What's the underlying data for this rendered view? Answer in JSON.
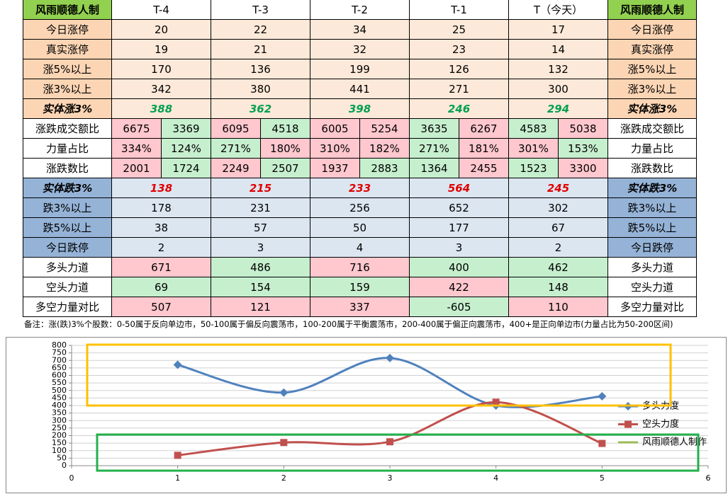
{
  "table": {
    "header": [
      "风雨顺德人制",
      "T-4",
      "T-3",
      "T-2",
      "T-1",
      "T（今天）"
    ],
    "header_color": "#92d050",
    "rows": [
      {
        "label": "今日涨停",
        "label_color": "#fcd5b4",
        "color": "#fde9d9",
        "values": [
          20,
          22,
          34,
          25,
          17
        ]
      },
      {
        "label": "真实涨停",
        "label_color": "#fcd5b4",
        "color": "#fde9d9",
        "values": [
          19,
          21,
          32,
          23,
          14
        ]
      },
      {
        "label": "涨5%以上",
        "label_color": "#fcd5b4",
        "color": "#fde9d9",
        "values": [
          170,
          136,
          199,
          126,
          132
        ]
      },
      {
        "label": "涨3%以上",
        "label_color": "#fcd5b4",
        "color": "#fde9d9",
        "values": [
          342,
          380,
          441,
          271,
          300
        ]
      },
      {
        "label": "实体涨3%",
        "label_color": "#fcd5b4",
        "color": "#fde9d9",
        "values": [
          388,
          362,
          398,
          246,
          294
        ],
        "font_color": "#00a050",
        "emphasis": true
      },
      {
        "label": "涨跌成交额比",
        "label_color": "#ffffff",
        "values": [
          [
            6675,
            3369
          ],
          [
            6095,
            4518
          ],
          [
            6005,
            5254
          ],
          [
            3635,
            6267
          ],
          [
            4583,
            5038
          ]
        ],
        "colors": [
          [
            "#ffc7ce",
            "#c6efce"
          ],
          [
            "#ffc7ce",
            "#c6efce"
          ],
          [
            "#ffc7ce",
            "#ffc7ce"
          ],
          [
            "#c6efce",
            "#ffc7ce"
          ],
          [
            "#c6efce",
            "#ffc7ce"
          ]
        ]
      },
      {
        "label": "力量占比",
        "label_color": "#ffffff",
        "values": [
          [
            "334%",
            "124%"
          ],
          [
            "271%",
            "180%"
          ],
          [
            "310%",
            "182%"
          ],
          [
            "271%",
            "181%"
          ],
          [
            "301%",
            "153%"
          ]
        ],
        "colors": [
          [
            "#ffc7ce",
            "#c6efce"
          ],
          [
            "#c6efce",
            "#ffc7ce"
          ],
          [
            "#ffc7ce",
            "#ffc7ce"
          ],
          [
            "#c6efce",
            "#ffc7ce"
          ],
          [
            "#ffc7ce",
            "#c6efce"
          ]
        ]
      },
      {
        "label": "涨跌数比",
        "label_color": "#ffffff",
        "values": [
          [
            2001,
            1724
          ],
          [
            2249,
            2507
          ],
          [
            1937,
            2883
          ],
          [
            1364,
            2455
          ],
          [
            1523,
            3300
          ]
        ],
        "colors": [
          [
            "#ffc7ce",
            "#c6efce"
          ],
          [
            "#ffc7ce",
            "#c6efce"
          ],
          [
            "#ffc7ce",
            "#c6efce"
          ],
          [
            "#c6efce",
            "#ffc7ce"
          ],
          [
            "#c6efce",
            "#ffc7ce"
          ]
        ]
      },
      {
        "label": "实体跌3%",
        "label_color": "#95b3d7",
        "color": "#dce6f1",
        "values": [
          138,
          215,
          233,
          564,
          245
        ],
        "font_color": "#e00000",
        "emphasis": true
      },
      {
        "label": "跌3%以上",
        "label_color": "#95b3d7",
        "color": "#dce6f1",
        "values": [
          178,
          231,
          256,
          652,
          302
        ]
      },
      {
        "label": "跌5%以上",
        "label_color": "#95b3d7",
        "color": "#dce6f1",
        "values": [
          38,
          57,
          50,
          177,
          67
        ]
      },
      {
        "label": "今日跌停",
        "label_color": "#95b3d7",
        "color": "#dce6f1",
        "values": [
          2,
          3,
          4,
          3,
          2
        ]
      },
      {
        "label": "多头力道",
        "label_color": "#ffffff",
        "values": [
          671,
          486,
          716,
          400,
          462
        ],
        "colors": [
          "#ffc7ce",
          "#c6efce",
          "#ffc7ce",
          "#c6efce",
          "#c6efce"
        ]
      },
      {
        "label": "空头力道",
        "label_color": "#ffffff",
        "values": [
          69,
          154,
          159,
          422,
          148
        ],
        "colors": [
          "#c6efce",
          "#c6efce",
          "#c6efce",
          "#ffc7ce",
          "#c6efce"
        ]
      },
      {
        "label": "多空力量对比",
        "label_color": "#ffffff",
        "values": [
          507,
          121,
          337,
          -605,
          110
        ],
        "colors": [
          "#ffc7ce",
          "#ffc7ce",
          "#ffc7ce",
          "#c6efce",
          "#ffc7ce"
        ]
      }
    ],
    "note": "备注：涨(跌)3%个股数：0-50属于反向单边市，50-100属于偏反向震荡市，100-200属于平衡震荡市，200-400属于偏正向震荡市，400+是正向单边市(力量占比为50-200区间)"
  },
  "chart_data": {
    "type": "line",
    "smooth": true,
    "grid": true,
    "x": [
      1,
      2,
      3,
      4,
      5
    ],
    "xlim": [
      0,
      6
    ],
    "xticks": [
      0,
      1,
      2,
      3,
      4,
      5,
      6
    ],
    "ylim": [
      0,
      800
    ],
    "yticks": [
      0,
      50,
      100,
      150,
      200,
      250,
      300,
      350,
      400,
      450,
      500,
      550,
      600,
      650,
      700,
      750,
      800
    ],
    "legend": "right",
    "series": [
      {
        "name": "多头力度",
        "color": "#4f81bd",
        "marker": "diamond",
        "values": [
          671,
          486,
          716,
          400,
          462
        ]
      },
      {
        "name": "空头力度",
        "color": "#c0504d",
        "marker": "square",
        "values": [
          69,
          154,
          159,
          422,
          148
        ]
      },
      {
        "name": "风雨顺德人制作",
        "color": "#9bbb59",
        "marker": "none",
        "values": [
          null,
          null,
          null,
          null,
          null
        ]
      }
    ]
  }
}
